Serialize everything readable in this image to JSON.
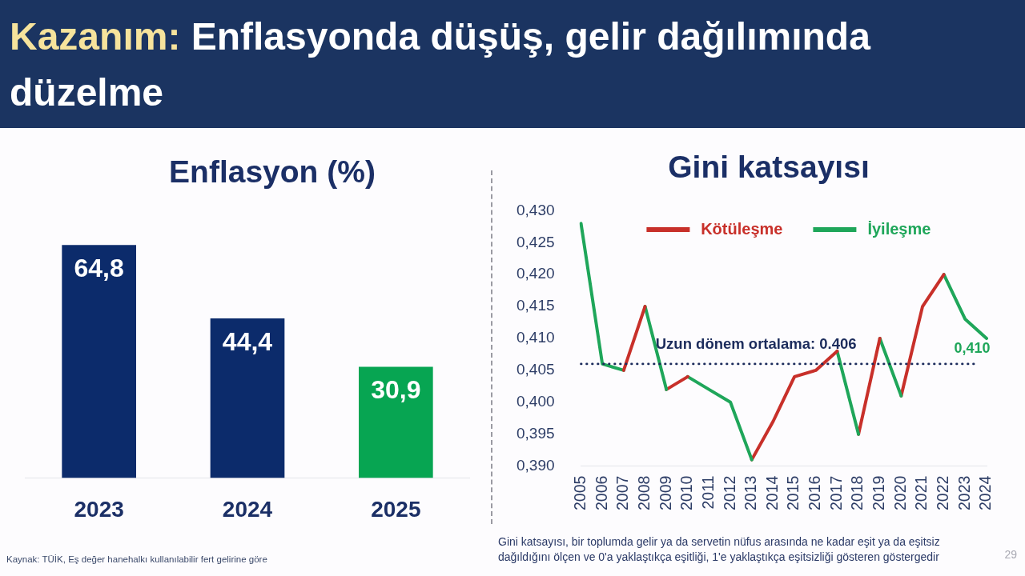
{
  "chart_data": [
    {
      "type": "other",
      "title": "Kazanım: Enflasyonda düşüş, gelir dağılımında düzelme",
      "annotations": [
        "29"
      ]
    },
    {
      "type": "bar",
      "title": "Enflasyon (%)",
      "categories": [
        "2023",
        "2024",
        "2025"
      ],
      "values": [
        64.8,
        44.4,
        30.9
      ],
      "colors": [
        "#0c2b6b",
        "#0c2b6b",
        "#07a552"
      ],
      "value_labels": [
        "64,8",
        "44,4",
        "30,9"
      ],
      "tick_labels": "x",
      "annotations": [
        "Kaynak: TÜİK, Eş değer hanehalkı kullanılabilir fert gelirine göre"
      ]
    },
    {
      "type": "line",
      "title": "Gini katsayısı",
      "categories": [
        "2005",
        "2006",
        "2007",
        "2008",
        "2009",
        "2010",
        "2011",
        "2012",
        "2013",
        "2014",
        "2015",
        "2016",
        "2017",
        "2018",
        "2019",
        "2020",
        "2021",
        "2022",
        "2023",
        "2024"
      ],
      "series": [
        {
          "name": "Kötüleşme",
          "color": "#c8302a",
          "values": [
            null,
            null,
            0.405,
            0.415,
            null,
            null,
            null,
            null,
            null,
            null,
            null,
            null,
            null,
            null,
            null,
            null,
            null,
            null,
            null,
            null
          ]
        },
        {
          "name": "İyileşme",
          "color": "#1fa65a",
          "values": [
            0.428,
            0.406,
            0.405,
            null,
            null,
            null,
            null,
            null,
            null,
            null,
            null,
            null,
            null,
            null,
            null,
            null,
            null,
            null,
            null,
            null
          ]
        },
        {
          "color": "#1fa65a",
          "values": [
            null,
            null,
            null,
            0.415,
            0.402,
            null,
            null,
            null,
            null,
            null,
            null,
            null,
            null,
            null,
            null,
            null,
            null,
            null,
            null,
            null
          ]
        },
        {
          "color": "#c8302a",
          "values": [
            null,
            null,
            null,
            null,
            0.402,
            0.404,
            null,
            null,
            null,
            null,
            null,
            null,
            null,
            null,
            null,
            null,
            null,
            null,
            null,
            null
          ]
        },
        {
          "color": "#1fa65a",
          "values": [
            null,
            null,
            null,
            null,
            null,
            0.404,
            0.402,
            0.4,
            0.391,
            null,
            null,
            null,
            null,
            null,
            null,
            null,
            null,
            null,
            null,
            null
          ]
        },
        {
          "color": "#c8302a",
          "values": [
            null,
            null,
            null,
            null,
            null,
            null,
            null,
            null,
            0.391,
            0.397,
            0.404,
            0.405,
            0.408,
            null,
            null,
            null,
            null,
            null,
            null,
            null
          ]
        },
        {
          "color": "#1fa65a",
          "values": [
            null,
            null,
            null,
            null,
            null,
            null,
            null,
            null,
            null,
            null,
            null,
            null,
            0.408,
            0.395,
            null,
            null,
            null,
            null,
            null,
            null
          ]
        },
        {
          "color": "#c8302a",
          "values": [
            null,
            null,
            null,
            null,
            null,
            null,
            null,
            null,
            null,
            null,
            null,
            null,
            null,
            0.395,
            0.41,
            null,
            null,
            null,
            null,
            null
          ]
        },
        {
          "color": "#1fa65a",
          "values": [
            null,
            null,
            null,
            null,
            null,
            null,
            null,
            null,
            null,
            null,
            null,
            null,
            null,
            null,
            0.41,
            0.401,
            null,
            null,
            null,
            null
          ]
        },
        {
          "color": "#c8302a",
          "values": [
            null,
            null,
            null,
            null,
            null,
            null,
            null,
            null,
            null,
            null,
            null,
            null,
            null,
            null,
            null,
            0.401,
            0.415,
            0.42,
            null,
            null
          ]
        },
        {
          "color": "#1fa65a",
          "values": [
            null,
            null,
            null,
            null,
            null,
            null,
            null,
            null,
            null,
            null,
            null,
            null,
            null,
            null,
            null,
            null,
            null,
            0.42,
            0.413,
            0.41
          ]
        }
      ],
      "ylim": [
        0.39,
        0.43
      ],
      "yticks": [
        {
          "value": 0.39,
          "label": "0,390"
        },
        {
          "value": 0.395,
          "label": "0,395"
        },
        {
          "value": 0.4,
          "label": "0,400"
        },
        {
          "value": 0.405,
          "label": "0,405"
        },
        {
          "value": 0.41,
          "label": "0,410"
        },
        {
          "value": 0.415,
          "label": "0,415"
        },
        {
          "value": 0.42,
          "label": "0,420"
        },
        {
          "value": 0.425,
          "label": "0,425"
        },
        {
          "value": 0.43,
          "label": "0,430"
        }
      ],
      "legend": "top",
      "marker": "none",
      "ref_lines": [
        {
          "axis": "y",
          "value": 0.406,
          "label": "Uzun dönem ortalama: 0.406",
          "color": "#1c2c5c",
          "line_style": "dotted"
        }
      ],
      "annotations": [
        {
          "text": "0,410",
          "x": "2024",
          "y": 0.41
        },
        "Gini katsayısı, bir toplumda gelir ya da servetin nüfus arasında ne kadar eşit ya da eşitsiz dağıldığını ölçen ve 0'a yaklaştıkça eşitliği, 1'e yaklaştıkça eşitsizliği gösteren göstergedir"
      ]
    }
  ]
}
